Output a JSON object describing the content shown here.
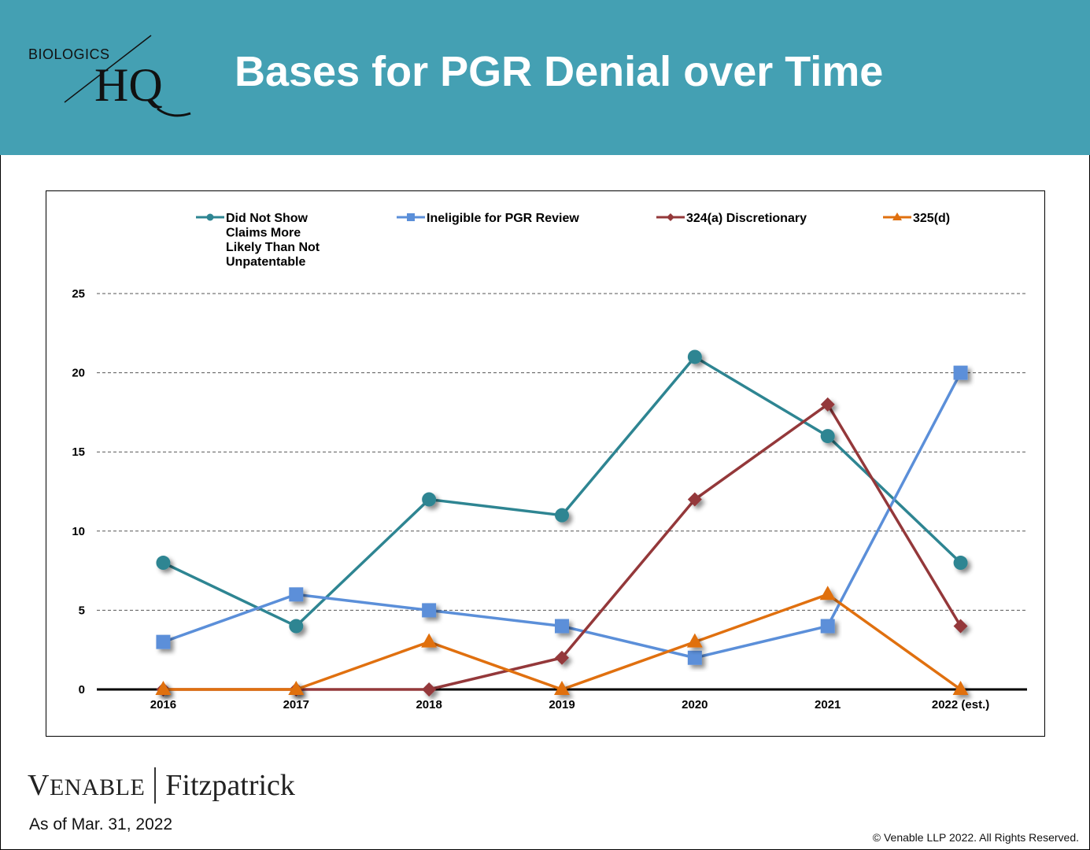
{
  "header": {
    "logo_top": "BIOLOGICS",
    "logo_main": "HQ",
    "title": "Bases for PGR Denial over Time",
    "background_color": "#44a0b3"
  },
  "chart_data": {
    "type": "line",
    "title": "Bases for PGR Denial over Time",
    "xlabel": "",
    "ylabel": "",
    "categories": [
      "2016",
      "2017",
      "2018",
      "2019",
      "2020",
      "2021",
      "2022 (est.)"
    ],
    "ylim": [
      0,
      25
    ],
    "yticks": [
      0,
      5,
      10,
      15,
      20,
      25
    ],
    "grid": "dashed horizontal",
    "legend_position": "top",
    "series": [
      {
        "name": "Did Not Show Claims More Likely Than Not Unpatentable",
        "legend_lines": [
          "Did Not Show",
          "Claims More",
          "Likely Than Not",
          "Unpatentable"
        ],
        "color": "#2e8592",
        "marker": "circle",
        "values": [
          8,
          4,
          12,
          11,
          21,
          16,
          8
        ]
      },
      {
        "name": "Ineligible for PGR Review",
        "legend_lines": [
          "Ineligible for PGR Review"
        ],
        "color": "#5b8fd9",
        "marker": "square",
        "values": [
          3,
          6,
          5,
          4,
          2,
          4,
          20
        ]
      },
      {
        "name": "324(a) Discretionary",
        "legend_lines": [
          "324(a) Discretionary"
        ],
        "color": "#94383a",
        "marker": "diamond",
        "values": [
          0,
          0,
          0,
          2,
          12,
          18,
          4
        ]
      },
      {
        "name": "325(d)",
        "legend_lines": [
          "325(d)"
        ],
        "color": "#e0700f",
        "marker": "triangle",
        "values": [
          0,
          0,
          3,
          0,
          3,
          6,
          0
        ]
      }
    ]
  },
  "footer": {
    "brand_left": "Venable",
    "brand_right": "Fitzpatrick",
    "as_of": "As of Mar. 31, 2022",
    "copyright": "© Venable LLP 2022. All Rights Reserved."
  }
}
